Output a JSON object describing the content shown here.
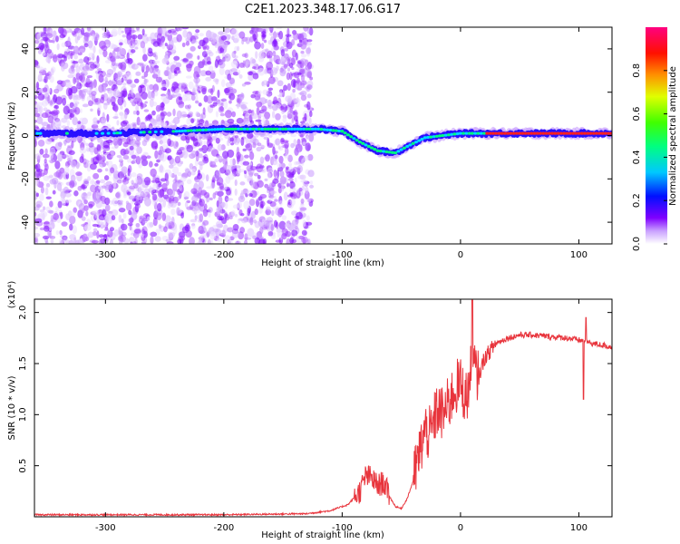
{
  "figure": {
    "title": "C2E1.2023.348.17.06.G17"
  },
  "chart_data": [
    {
      "type": "heatmap",
      "xlabel": "Height of straight line (km)",
      "ylabel": "Frequency (Hz)",
      "xlim": [
        -360,
        128
      ],
      "ylim": [
        -50,
        50
      ],
      "x_ticks": [
        -300,
        -200,
        -100,
        0,
        100
      ],
      "y_ticks": [
        -40,
        -20,
        0,
        20,
        40
      ],
      "colorbar": {
        "label": "Normalized spectral amplitude",
        "range": [
          0,
          1
        ],
        "ticks": [
          "0.0",
          "0.2",
          "0.4",
          "0.6",
          "0.8"
        ],
        "colormap": "rainbow"
      },
      "ridge_frequency_track": {
        "x": [
          -360,
          -300,
          -240,
          -200,
          -150,
          -120,
          -100,
          -85,
          -70,
          -55,
          -45,
          -30,
          -15,
          0,
          20,
          60,
          100,
          128
        ],
        "y": [
          1,
          1,
          2,
          3,
          3,
          3,
          2,
          -3,
          -7,
          -8,
          -5,
          -1,
          0,
          1,
          1,
          1,
          1,
          1
        ]
      }
    },
    {
      "type": "line",
      "xlabel": "Height of straight line (km)",
      "ylabel": "SNR (10 * v/v)",
      "y_multiplier": "(x10⁴)",
      "xlim": [
        -360,
        128
      ],
      "ylim": [
        0,
        2.13
      ],
      "x_ticks": [
        -300,
        -200,
        -100,
        0,
        100
      ],
      "y_ticks": [
        0.5,
        1.0,
        1.5,
        2.0
      ],
      "series": [
        {
          "color": "#e8343c",
          "x": [
            -360,
            -300,
            -200,
            -130,
            -110,
            -95,
            -85,
            -80,
            -75,
            -70,
            -65,
            -60,
            -55,
            -50,
            -45,
            -40,
            -35,
            -30,
            -25,
            -20,
            -15,
            -10,
            -5,
            0,
            5,
            10,
            15,
            20,
            30,
            40,
            50,
            60,
            70,
            80,
            90,
            100,
            105,
            110,
            120,
            128
          ],
          "y": [
            0.02,
            0.02,
            0.02,
            0.03,
            0.06,
            0.12,
            0.25,
            0.4,
            0.38,
            0.3,
            0.34,
            0.2,
            0.1,
            0.08,
            0.18,
            0.35,
            0.6,
            0.85,
            0.8,
            1.05,
            1.0,
            1.1,
            1.25,
            1.3,
            1.15,
            1.5,
            1.35,
            1.55,
            1.7,
            1.75,
            1.78,
            1.78,
            1.77,
            1.76,
            1.75,
            1.73,
            1.72,
            1.7,
            1.68,
            1.66
          ]
        }
      ]
    }
  ]
}
